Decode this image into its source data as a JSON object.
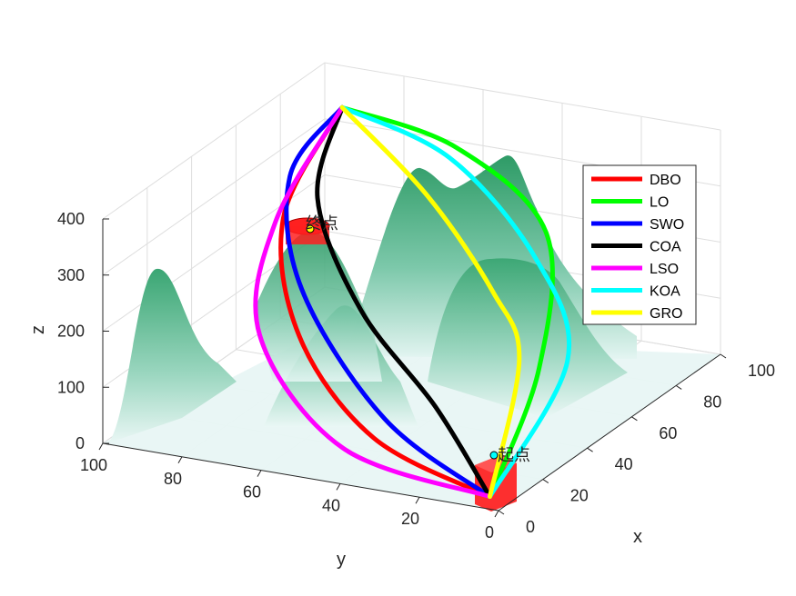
{
  "chart_data": {
    "type": "line",
    "projection": "3d",
    "xlabel": "x",
    "ylabel": "y",
    "zlabel": "z",
    "xlim": [
      0,
      100
    ],
    "ylim": [
      0,
      100
    ],
    "zlim": [
      0,
      400
    ],
    "x_ticks": [
      "0",
      "20",
      "40",
      "60",
      "80",
      "100"
    ],
    "y_ticks": [
      "0",
      "20",
      "40",
      "60",
      "80",
      "100"
    ],
    "z_ticks": [
      "0",
      "100",
      "200",
      "300",
      "400"
    ],
    "grid": true,
    "legend_position": "top-right",
    "surface": {
      "colormap": [
        "#e8f6f4",
        "#2e9b66"
      ],
      "peaks": [
        {
          "x": 12,
          "y": 90,
          "height": 300
        },
        {
          "x": 35,
          "y": 35,
          "height": 190
        },
        {
          "x": 70,
          "y": 45,
          "height": 330
        },
        {
          "x": 82,
          "y": 70,
          "height": 330
        },
        {
          "x": 90,
          "y": 45,
          "height": 380
        },
        {
          "x": 70,
          "y": 25,
          "height": 320
        }
      ]
    },
    "start": {
      "label": "起点",
      "x": 5,
      "y": 5,
      "z": 5
    },
    "end": {
      "label": "终点",
      "x": 90,
      "y": 90,
      "z": 360
    },
    "series": [
      {
        "name": "DBO",
        "color": "#ff0000",
        "points": [
          [
            5,
            5,
            5
          ],
          [
            15,
            40,
            40
          ],
          [
            35,
            70,
            130
          ],
          [
            60,
            88,
            250
          ],
          [
            90,
            90,
            360
          ]
        ]
      },
      {
        "name": "LO",
        "color": "#00ff00",
        "points": [
          [
            5,
            5,
            5
          ],
          [
            45,
            15,
            110
          ],
          [
            75,
            30,
            250
          ],
          [
            88,
            60,
            330
          ],
          [
            90,
            90,
            360
          ]
        ]
      },
      {
        "name": "SWO",
        "color": "#0000ff",
        "points": [
          [
            5,
            5,
            5
          ],
          [
            20,
            40,
            60
          ],
          [
            45,
            75,
            180
          ],
          [
            70,
            92,
            290
          ],
          [
            90,
            90,
            360
          ]
        ]
      },
      {
        "name": "COA",
        "color": "#000000",
        "points": [
          [
            5,
            5,
            5
          ],
          [
            25,
            30,
            80
          ],
          [
            45,
            60,
            160
          ],
          [
            70,
            85,
            260
          ],
          [
            90,
            90,
            360
          ]
        ]
      },
      {
        "name": "LSO",
        "color": "#ff00ff",
        "points": [
          [
            5,
            5,
            5
          ],
          [
            10,
            45,
            30
          ],
          [
            35,
            80,
            120
          ],
          [
            60,
            90,
            240
          ],
          [
            90,
            90,
            360
          ]
        ]
      },
      {
        "name": "KOA",
        "color": "#00ffff",
        "points": [
          [
            5,
            5,
            5
          ],
          [
            40,
            5,
            150
          ],
          [
            70,
            30,
            220
          ],
          [
            85,
            60,
            320
          ],
          [
            90,
            90,
            360
          ]
        ]
      },
      {
        "name": "GRO",
        "color": "#ffff00",
        "points": [
          [
            5,
            5,
            5
          ],
          [
            45,
            20,
            120
          ],
          [
            60,
            35,
            180
          ],
          [
            75,
            60,
            280
          ],
          [
            90,
            90,
            360
          ]
        ]
      }
    ]
  }
}
